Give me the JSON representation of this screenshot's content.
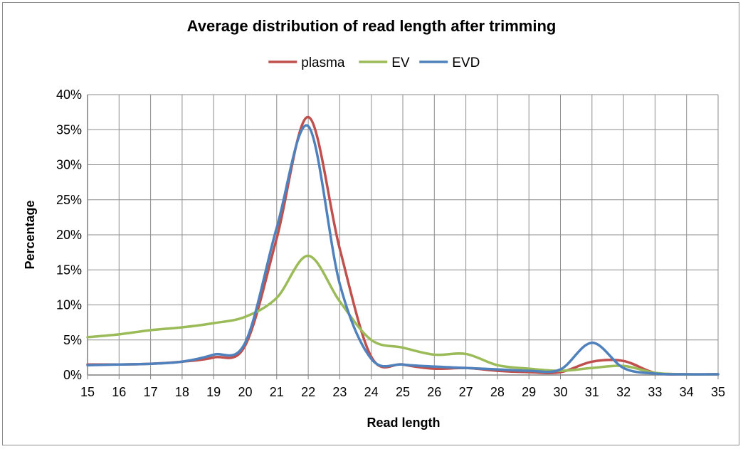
{
  "chart_data": {
    "type": "line",
    "title": "Average distribution of read length after trimming",
    "xlabel": "Read length",
    "ylabel": "Percentage",
    "x": [
      15,
      16,
      17,
      18,
      19,
      20,
      21,
      22,
      23,
      24,
      25,
      26,
      27,
      28,
      29,
      30,
      31,
      32,
      33,
      34,
      35
    ],
    "x_tick_labels": [
      "15",
      "16",
      "17",
      "18",
      "19",
      "20",
      "21",
      "22",
      "23",
      "24",
      "25",
      "26",
      "27",
      "28",
      "29",
      "30",
      "31",
      "32",
      "33",
      "34",
      "35"
    ],
    "ylim": [
      0,
      40
    ],
    "y_ticks": [
      0,
      5,
      10,
      15,
      20,
      25,
      30,
      35,
      40
    ],
    "y_tick_labels": [
      "0%",
      "5%",
      "10%",
      "15%",
      "20%",
      "25%",
      "30%",
      "35%",
      "40%"
    ],
    "grid": true,
    "legend_position": "top",
    "series": [
      {
        "name": "plasma",
        "color": "#C0504D",
        "values": [
          1.5,
          1.5,
          1.6,
          1.9,
          2.5,
          4.2,
          19.5,
          36.8,
          18.0,
          2.6,
          1.5,
          0.9,
          1.0,
          0.6,
          0.4,
          0.4,
          1.9,
          2.0,
          0.3,
          0.1,
          0.1
        ]
      },
      {
        "name": "EV",
        "color": "#9BBB59",
        "values": [
          5.4,
          5.8,
          6.4,
          6.8,
          7.4,
          8.3,
          11.0,
          17.0,
          10.5,
          5.0,
          3.9,
          2.9,
          3.0,
          1.4,
          0.9,
          0.6,
          1.0,
          1.3,
          0.3,
          0.1,
          0.1
        ]
      },
      {
        "name": "EVD",
        "color": "#4F81BD",
        "values": [
          1.4,
          1.5,
          1.6,
          1.9,
          2.9,
          4.6,
          21.0,
          35.5,
          13.0,
          2.3,
          1.5,
          1.2,
          1.0,
          0.8,
          0.6,
          0.8,
          4.6,
          1.0,
          0.2,
          0.1,
          0.1
        ]
      }
    ]
  }
}
